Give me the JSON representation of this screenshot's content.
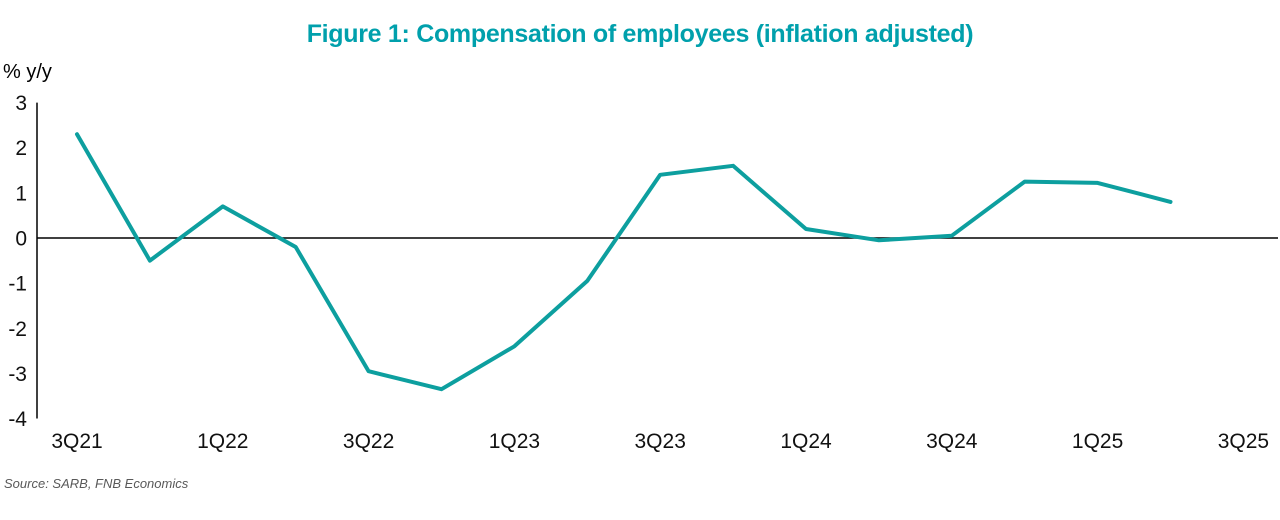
{
  "title": {
    "text": "Figure 1: Compensation of employees (inflation adjusted)",
    "color": "#00A0AC"
  },
  "y_axis_unit": "% y/y",
  "source": "Source: SARB, FNB Economics",
  "chart_data": {
    "type": "line",
    "title": "Figure 1: Compensation of employees (inflation adjusted)",
    "ylabel": "% y/y",
    "xlabel": "",
    "x": [
      "3Q21",
      "4Q21",
      "1Q22",
      "2Q22",
      "3Q22",
      "4Q22",
      "1Q23",
      "2Q23",
      "3Q23",
      "4Q23",
      "1Q24",
      "2Q24",
      "3Q24",
      "4Q24",
      "1Q25",
      "2Q25"
    ],
    "series": [
      {
        "name": "Compensation of employees, real y/y %",
        "values": [
          2.3,
          -0.5,
          0.7,
          -0.2,
          -2.95,
          -3.35,
          -2.4,
          -0.95,
          1.4,
          1.6,
          0.2,
          -0.05,
          0.05,
          1.25,
          1.22,
          0.8
        ]
      }
    ],
    "x_tick_labels": [
      "3Q21",
      "1Q22",
      "3Q22",
      "1Q23",
      "3Q23",
      "1Q24",
      "3Q24",
      "1Q25",
      "3Q25"
    ],
    "x_tick_every": 2,
    "y_ticks": [
      3,
      2,
      1,
      0,
      -1,
      -2,
      -3,
      -4
    ],
    "ylim": [
      -4,
      3
    ],
    "grid": false,
    "legend_position": "none",
    "zero_line": true,
    "line_color": "#0D9F9F",
    "axis_color": "#000000"
  }
}
